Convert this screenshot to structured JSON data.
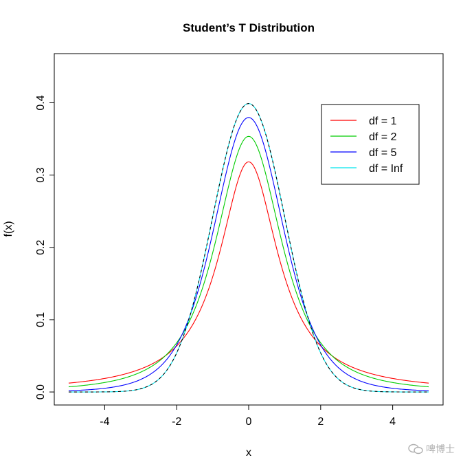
{
  "chart_data": {
    "type": "line",
    "title": "Student’s T Distribution",
    "xlabel": "x",
    "ylabel": "f(x)",
    "xlim": [
      -5,
      5
    ],
    "ylim": [
      0,
      0.45
    ],
    "xticks": [
      -4,
      -2,
      0,
      2,
      4
    ],
    "yticks": [
      0.0,
      0.1,
      0.2,
      0.3,
      0.4
    ],
    "ytick_labels": [
      "0.0",
      "0.1",
      "0.2",
      "0.3",
      "0.4"
    ],
    "grid": false,
    "legend": "top-right",
    "series": [
      {
        "name": "df = 1",
        "df": 1,
        "color": "#ff0000",
        "dashed": false,
        "x": [
          -5,
          -4,
          -3,
          -2,
          -1,
          -0.5,
          0,
          0.5,
          1,
          2,
          3,
          4,
          5
        ],
        "y": [
          0.0122,
          0.0187,
          0.0318,
          0.0637,
          0.1592,
          0.2546,
          0.3183,
          0.2546,
          0.1592,
          0.0637,
          0.0318,
          0.0187,
          0.0122
        ]
      },
      {
        "name": "df = 2",
        "df": 2,
        "color": "#00cc00",
        "dashed": false,
        "x": [
          -5,
          -4,
          -3,
          -2,
          -1,
          -0.5,
          0,
          0.5,
          1,
          2,
          3,
          4,
          5
        ],
        "y": [
          0.0071,
          0.0131,
          0.0274,
          0.068,
          0.1925,
          0.2963,
          0.3536,
          0.2963,
          0.1925,
          0.068,
          0.0274,
          0.0131,
          0.0071
        ]
      },
      {
        "name": "df = 5",
        "df": 5,
        "color": "#0000ff",
        "dashed": false,
        "x": [
          -5,
          -4,
          -3,
          -2,
          -1,
          -0.5,
          0,
          0.5,
          1,
          2,
          3,
          4,
          5
        ],
        "y": [
          0.0018,
          0.0051,
          0.0173,
          0.0651,
          0.2197,
          0.3279,
          0.3796,
          0.3279,
          0.2197,
          0.0651,
          0.0173,
          0.0051,
          0.0018
        ]
      },
      {
        "name": "df = Inf",
        "df": "Inf",
        "color": "#00e5ee",
        "dashed": false,
        "x": [
          -5,
          -4,
          -3,
          -2,
          -1,
          -0.5,
          0,
          0.5,
          1,
          2,
          3,
          4,
          5
        ],
        "y": [
          0.0,
          0.0001,
          0.0044,
          0.054,
          0.242,
          0.3521,
          0.3989,
          0.3521,
          0.242,
          0.054,
          0.0044,
          0.0001,
          0.0
        ]
      },
      {
        "name": "",
        "df": "Inf",
        "color": "#000000",
        "dashed": true,
        "x": [
          -5,
          -4,
          -3,
          -2,
          -1,
          -0.5,
          0,
          0.5,
          1,
          2,
          3,
          4,
          5
        ],
        "y": [
          0.0,
          0.0001,
          0.0044,
          0.054,
          0.242,
          0.3521,
          0.3989,
          0.3521,
          0.242,
          0.054,
          0.0044,
          0.0001,
          0.0
        ]
      }
    ]
  },
  "watermark": {
    "text": "啤博士",
    "icon": "wechat-icon",
    "color": "#b0b0b0"
  }
}
